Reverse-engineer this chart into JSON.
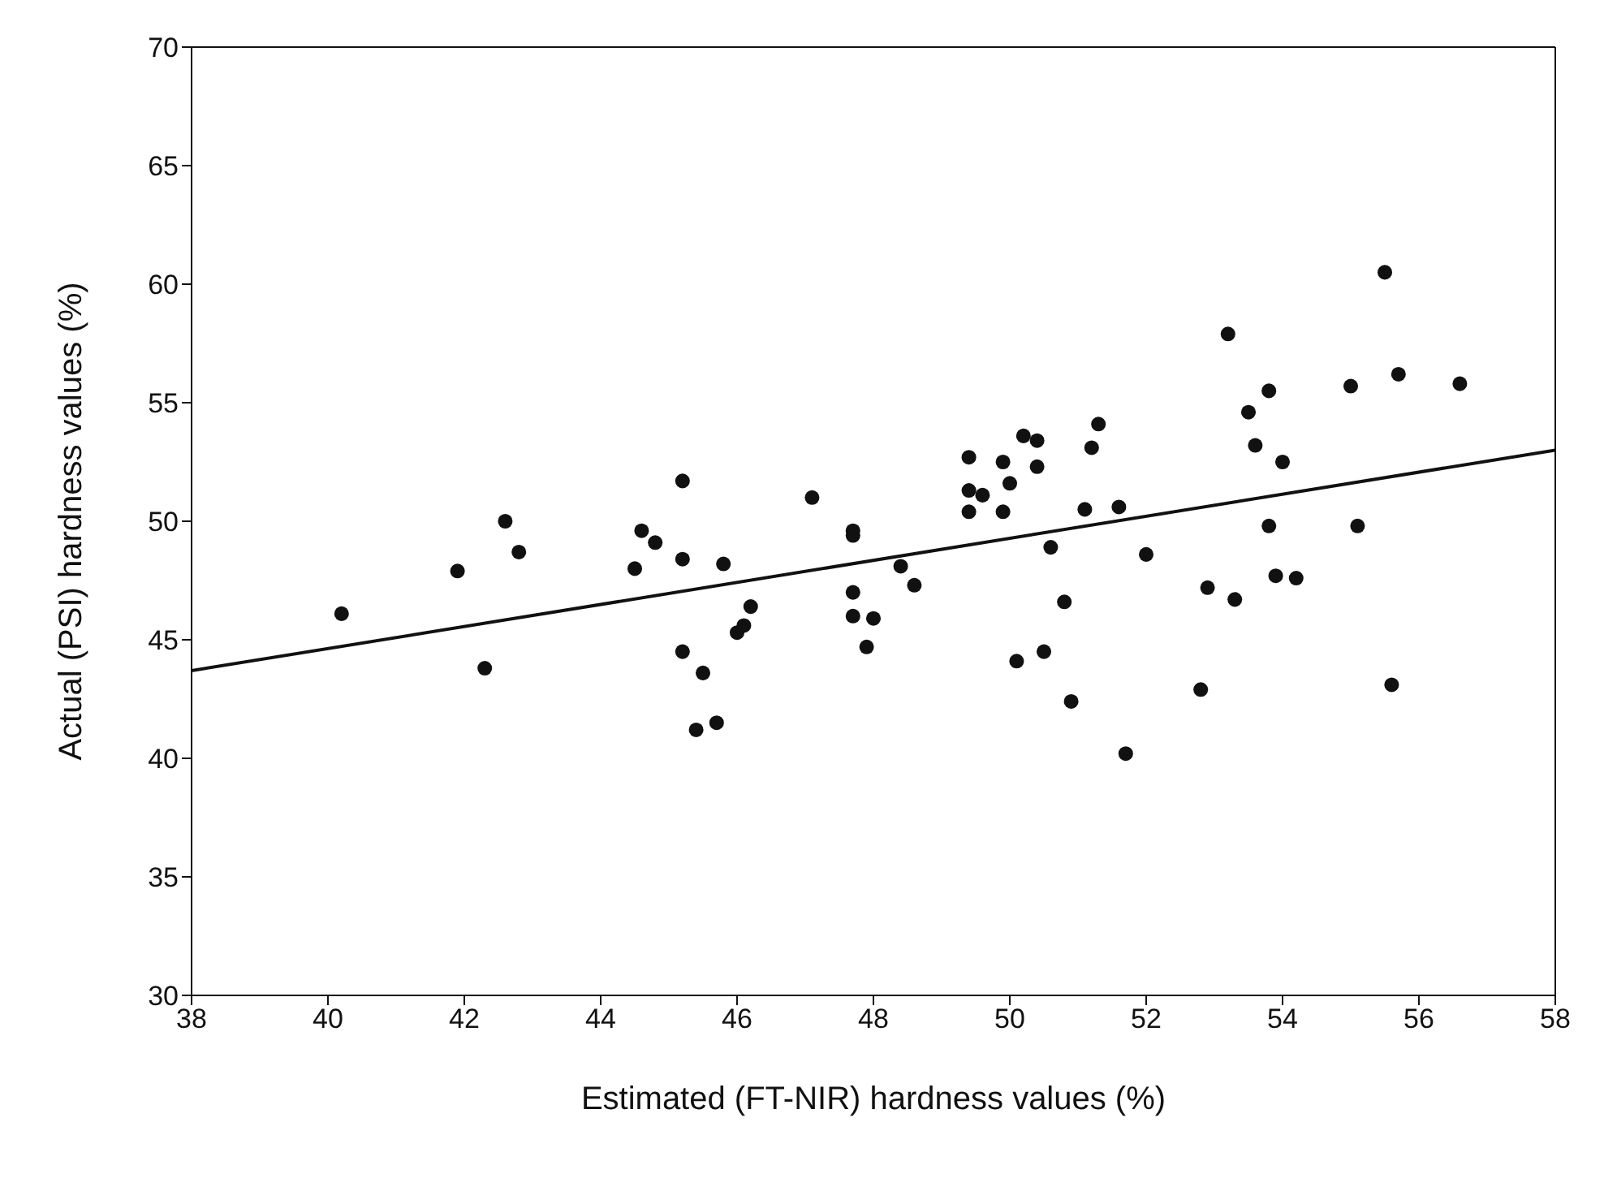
{
  "chart_data": {
    "type": "scatter",
    "xlabel": "Estimated (FT-NIR) hardness values (%)",
    "ylabel": "Actual (PSI) hardness values (%)",
    "xlim": [
      38,
      58
    ],
    "ylim": [
      30,
      70
    ],
    "xticks": [
      38,
      40,
      42,
      44,
      46,
      48,
      50,
      52,
      54,
      56,
      58
    ],
    "yticks": [
      30,
      35,
      40,
      45,
      50,
      55,
      60,
      65,
      70
    ],
    "series": [
      {
        "color": "#111111",
        "marker": "circle",
        "x": [
          40.2,
          41.9,
          42.3,
          42.6,
          42.8,
          44.5,
          44.6,
          44.8,
          45.2,
          45.2,
          45.2,
          45.4,
          45.5,
          45.7,
          45.8,
          46.0,
          46.1,
          46.2,
          47.1,
          47.7,
          47.7,
          47.7,
          47.7,
          47.9,
          48.0,
          48.4,
          48.6,
          49.4,
          49.4,
          49.4,
          49.6,
          49.9,
          49.9,
          50.0,
          50.1,
          50.2,
          50.4,
          50.4,
          50.5,
          50.6,
          50.8,
          50.9,
          51.1,
          51.2,
          51.3,
          51.6,
          51.7,
          52.0,
          52.8,
          52.9,
          53.2,
          53.3,
          53.5,
          53.6,
          53.8,
          53.8,
          53.9,
          54.0,
          54.2,
          55.0,
          55.1,
          55.5,
          55.6,
          55.7,
          56.6
        ],
        "values": [
          46.1,
          47.9,
          43.8,
          50.0,
          48.7,
          48.0,
          49.6,
          49.1,
          51.7,
          48.4,
          44.5,
          41.2,
          43.6,
          41.5,
          48.2,
          45.3,
          45.6,
          46.4,
          51.0,
          49.6,
          49.4,
          47.0,
          46.0,
          44.7,
          45.9,
          48.1,
          47.3,
          52.7,
          51.3,
          50.4,
          51.1,
          52.5,
          50.4,
          51.6,
          44.1,
          53.6,
          53.4,
          52.3,
          44.5,
          48.9,
          46.6,
          42.4,
          50.5,
          53.1,
          54.1,
          50.6,
          40.2,
          48.6,
          42.9,
          47.2,
          57.9,
          46.7,
          54.6,
          53.2,
          49.8,
          55.5,
          47.7,
          52.5,
          47.6,
          55.7,
          49.8,
          60.5,
          43.1,
          56.2,
          55.8
        ]
      },
      {
        "type": "line",
        "color": "#111111",
        "x": [
          38,
          58
        ],
        "values": [
          43.7,
          53.0
        ]
      }
    ]
  }
}
